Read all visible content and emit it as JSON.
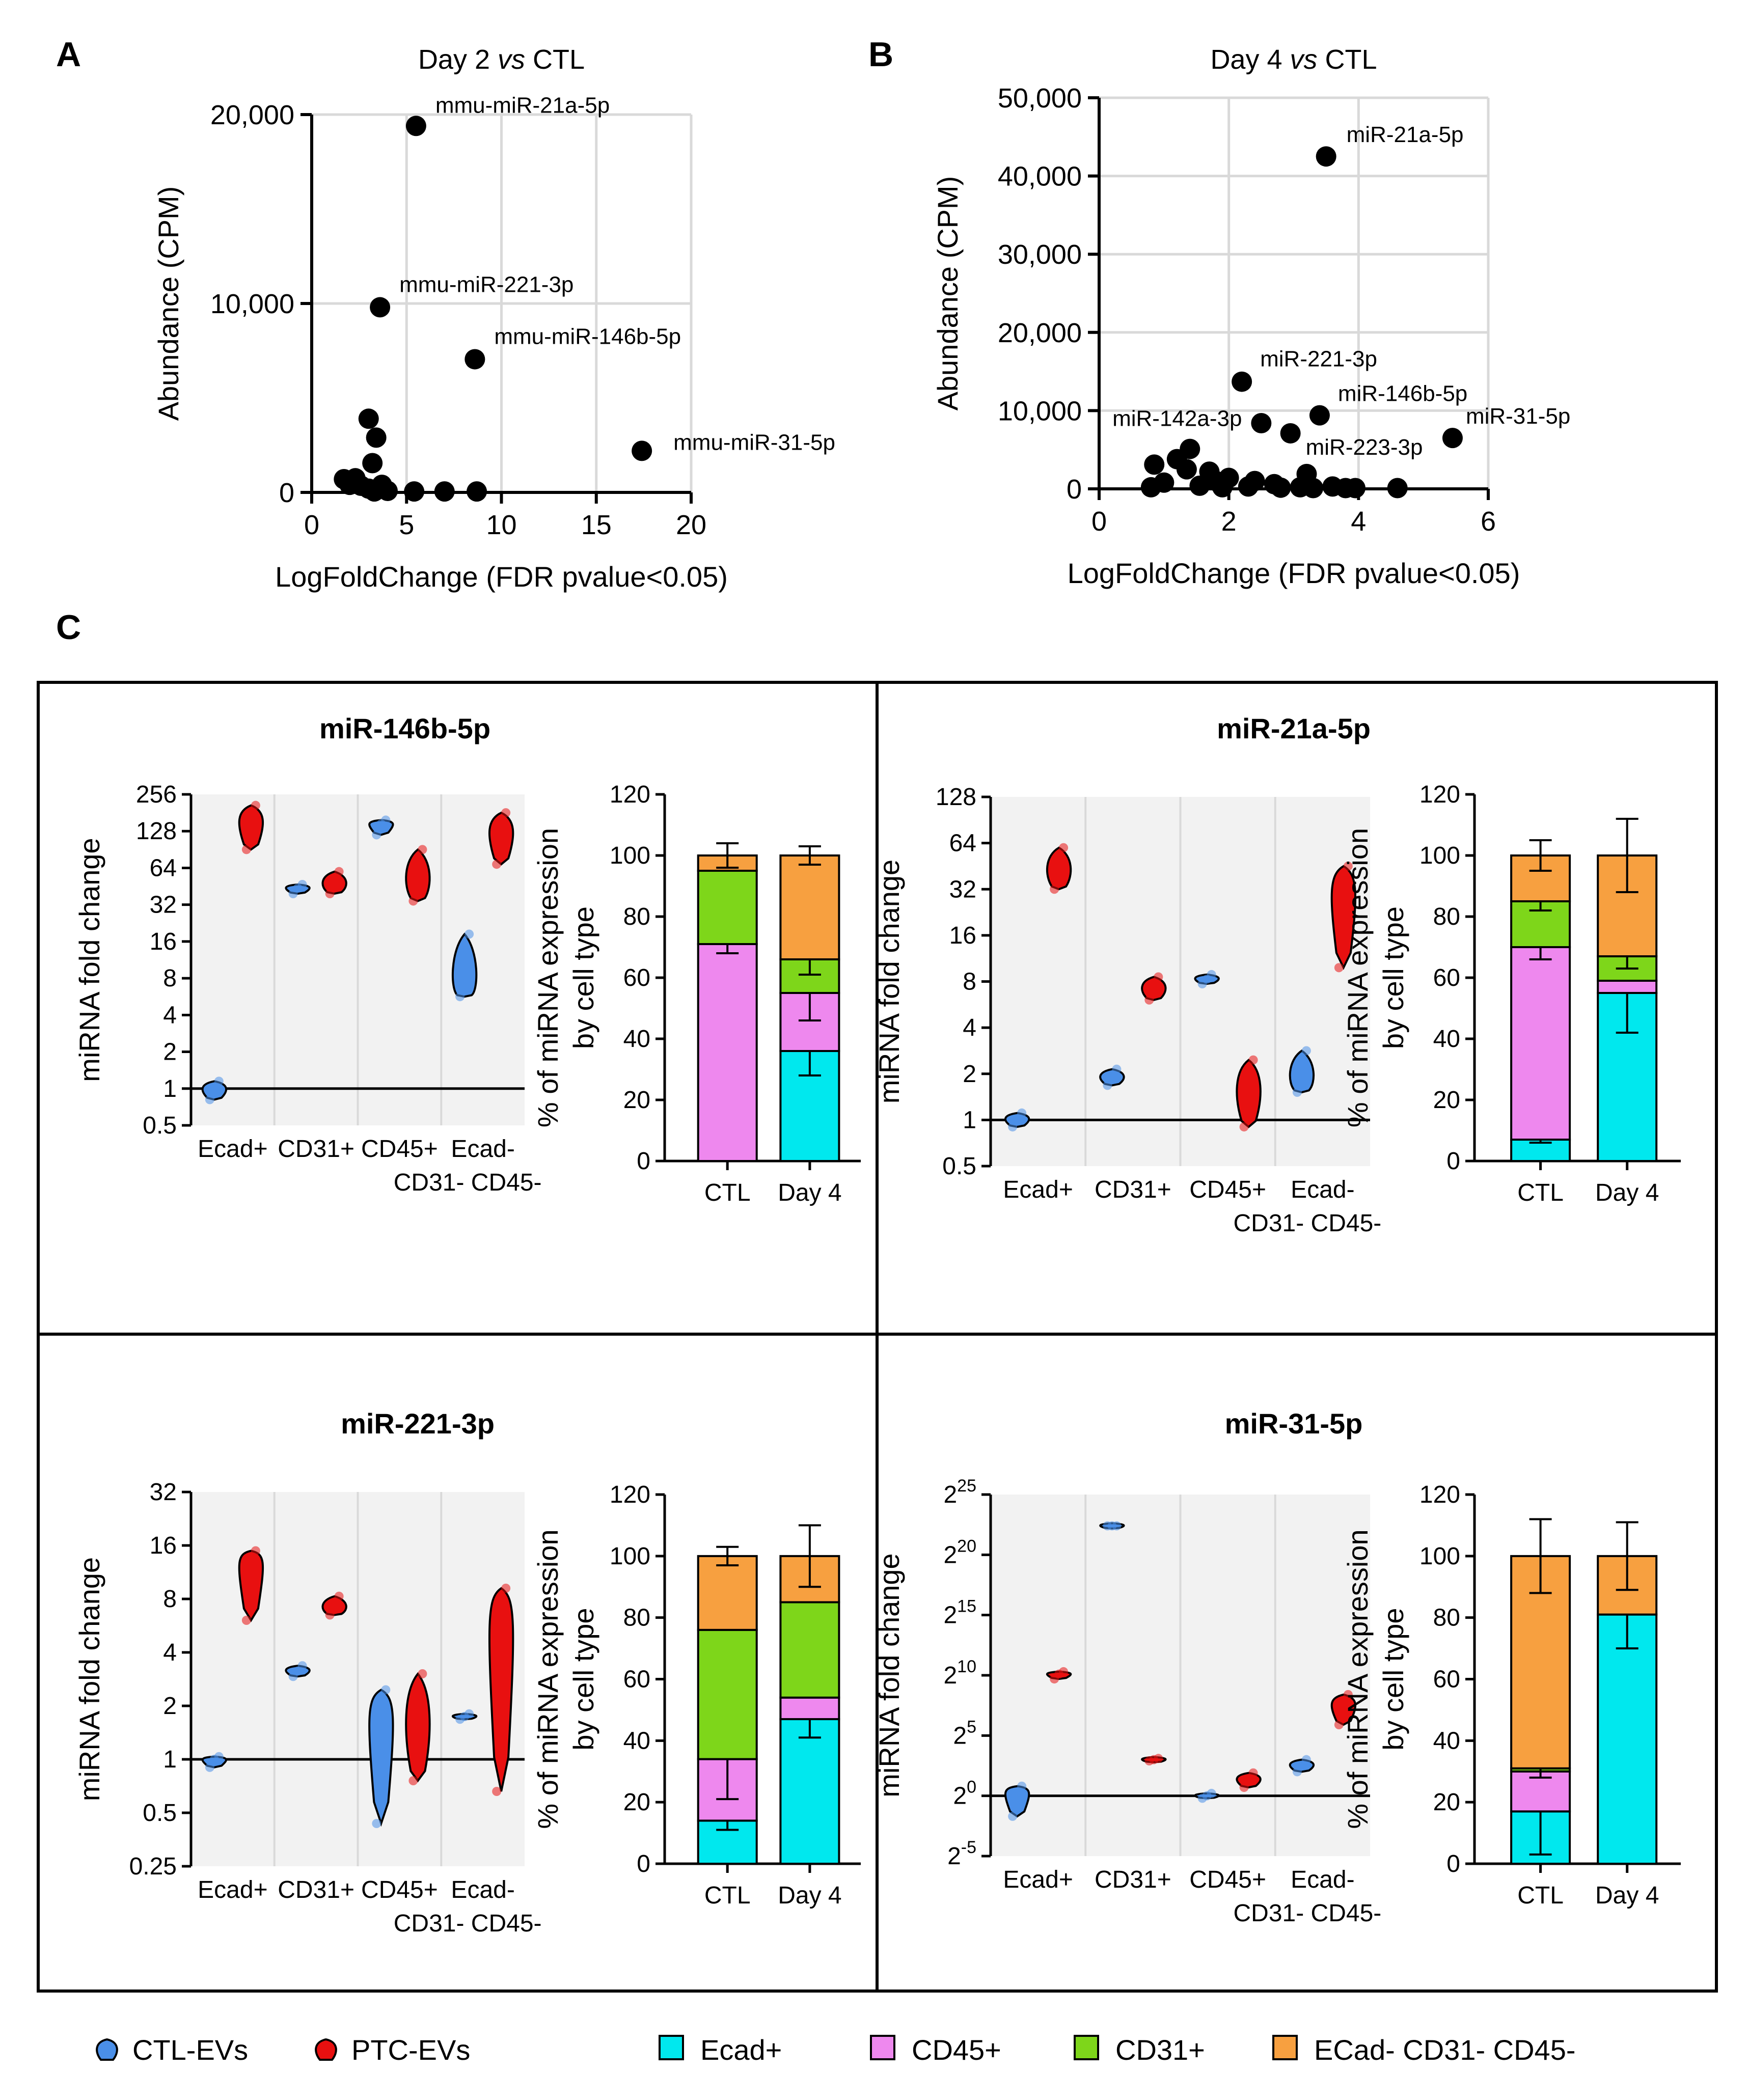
{
  "panel_letters": {
    "a": "A",
    "b": "B",
    "c": "C"
  },
  "colors": {
    "ctl_ev": "#4a8fe8",
    "ptc_ev": "#e81010",
    "ecad": "#00e8ee",
    "cd45": "#ee88ee",
    "cd31": "#7ed61a",
    "neg": "#f7a040",
    "grid": "#d9d9d9",
    "panel_bg": "#f2f2f2"
  },
  "legend": {
    "violin": [
      {
        "label": "CTL-EVs",
        "color_key": "ctl_ev"
      },
      {
        "label": "PTC-EVs",
        "color_key": "ptc_ev"
      }
    ],
    "stack": [
      {
        "label": "Ecad+",
        "color_key": "ecad"
      },
      {
        "label": "CD45+",
        "color_key": "cd45"
      },
      {
        "label": "CD31+",
        "color_key": "cd31"
      },
      {
        "label": "ECad- CD31- CD45-",
        "color_key": "neg"
      }
    ]
  },
  "chart_data": [
    {
      "id": "A",
      "type": "scatter",
      "title_pre": "Day 2 ",
      "title_em": "vs",
      "title_post": " CTL",
      "xlabel": "LogFoldChange (FDR pvalue<0.05)",
      "ylabel": "Abundance (CPM)",
      "xlim": [
        0,
        20
      ],
      "ylim": [
        0,
        20000
      ],
      "xticks": [
        "0",
        "5",
        "10",
        "15",
        "20"
      ],
      "yticks": [
        "0",
        "10,000",
        "20,000"
      ],
      "points": [
        {
          "x": 5.5,
          "y": 19400,
          "label": "mmu-miR-21a-5p"
        },
        {
          "x": 3.6,
          "y": 9800,
          "label": "mmu-miR-221-3p"
        },
        {
          "x": 8.6,
          "y": 7050,
          "label": "mmu-miR-146b-5p"
        },
        {
          "x": 17.4,
          "y": 2200,
          "label": "mmu-miR-31-5p"
        },
        {
          "x": 3.0,
          "y": 3900
        },
        {
          "x": 3.4,
          "y": 2900
        },
        {
          "x": 3.2,
          "y": 1550
        },
        {
          "x": 1.7,
          "y": 700
        },
        {
          "x": 2.3,
          "y": 750
        },
        {
          "x": 2.0,
          "y": 400
        },
        {
          "x": 2.6,
          "y": 350
        },
        {
          "x": 3.0,
          "y": 200
        },
        {
          "x": 3.7,
          "y": 400
        },
        {
          "x": 4.0,
          "y": 80
        },
        {
          "x": 5.4,
          "y": 50
        },
        {
          "x": 7.0,
          "y": 50
        },
        {
          "x": 8.7,
          "y": 50
        },
        {
          "x": 3.3,
          "y": 50
        }
      ]
    },
    {
      "id": "B",
      "type": "scatter",
      "title_pre": "Day 4 ",
      "title_em": "vs",
      "title_post": " CTL",
      "xlabel": "LogFoldChange (FDR pvalue<0.05)",
      "ylabel": "Abundance (CPM)",
      "xlim": [
        0,
        6
      ],
      "ylim": [
        0,
        50000
      ],
      "xticks": [
        "0",
        "2",
        "4",
        "6"
      ],
      "yticks": [
        "0",
        "10,000",
        "20,000",
        "30,000",
        "40,000",
        "50,000"
      ],
      "points": [
        {
          "x": 3.5,
          "y": 42500,
          "label": "miR-21a-5p"
        },
        {
          "x": 2.2,
          "y": 13700,
          "label": "miR-221-3p"
        },
        {
          "x": 3.4,
          "y": 9400,
          "label": "miR-146b-5p"
        },
        {
          "x": 5.45,
          "y": 6500,
          "label": "miR-31-5p"
        },
        {
          "x": 1.4,
          "y": 5100,
          "label": "miR-142a-3p"
        },
        {
          "x": 2.95,
          "y": 7100,
          "label": "miR-223-3p"
        },
        {
          "x": 2.5,
          "y": 8400
        },
        {
          "x": 0.85,
          "y": 3100
        },
        {
          "x": 1.2,
          "y": 3800
        },
        {
          "x": 1.35,
          "y": 2500
        },
        {
          "x": 1.7,
          "y": 2200
        },
        {
          "x": 2.0,
          "y": 1400
        },
        {
          "x": 2.4,
          "y": 1000
        },
        {
          "x": 2.7,
          "y": 600
        },
        {
          "x": 3.2,
          "y": 1900
        },
        {
          "x": 3.6,
          "y": 300
        },
        {
          "x": 0.8,
          "y": 200
        },
        {
          "x": 1.0,
          "y": 800
        },
        {
          "x": 1.55,
          "y": 400
        },
        {
          "x": 1.9,
          "y": 200
        },
        {
          "x": 2.3,
          "y": 300
        },
        {
          "x": 2.8,
          "y": 150
        },
        {
          "x": 3.1,
          "y": 200
        },
        {
          "x": 3.3,
          "y": 100
        },
        {
          "x": 3.8,
          "y": 100
        },
        {
          "x": 3.95,
          "y": 100
        },
        {
          "x": 4.6,
          "y": 100
        },
        {
          "x": 1.8,
          "y": 1000
        }
      ]
    },
    {
      "id": "C-146b",
      "type": "violin",
      "title": "miR-146b-5p",
      "ylabel": "miRNA fold change",
      "scale": "log2",
      "ylim_log2": [
        -1,
        8
      ],
      "yticks": [
        {
          "e": 8,
          "label": "256"
        },
        {
          "e": 7,
          "label": "128"
        },
        {
          "e": 6,
          "label": "64"
        },
        {
          "e": 5,
          "label": "32"
        },
        {
          "e": 4,
          "label": "16"
        },
        {
          "e": 3,
          "label": "8"
        },
        {
          "e": 2,
          "label": "4"
        },
        {
          "e": 1,
          "label": "2"
        },
        {
          "e": 0,
          "label": "1"
        },
        {
          "e": -1,
          "label": "0.5"
        }
      ],
      "categories": [
        "Ecad+",
        "CD31+",
        "CD45+",
        "Ecad-"
      ],
      "cat_second_line": "CD31- CD45-",
      "groups": [
        {
          "cat": 0,
          "sub": "ctl",
          "values_log2": [
            -0.3,
            -0.05,
            0.2
          ]
        },
        {
          "cat": 0,
          "sub": "ptc",
          "values_log2": [
            6.5,
            7.2,
            7.7
          ]
        },
        {
          "cat": 1,
          "sub": "ctl",
          "values_log2": [
            5.3,
            5.45,
            5.55
          ]
        },
        {
          "cat": 1,
          "sub": "ptc",
          "values_log2": [
            5.3,
            5.5,
            5.9
          ]
        },
        {
          "cat": 2,
          "sub": "ctl",
          "values_log2": [
            6.9,
            7.2,
            7.3
          ]
        },
        {
          "cat": 2,
          "sub": "ptc",
          "values_log2": [
            5.1,
            5.5,
            6.5
          ]
        },
        {
          "cat": 3,
          "sub": "ctl",
          "values_log2": [
            2.5,
            2.7,
            4.2
          ]
        },
        {
          "cat": 3,
          "sub": "ptc",
          "values_log2": [
            6.1,
            6.9,
            7.5
          ]
        }
      ]
    },
    {
      "id": "C-146b-stack",
      "type": "bar",
      "stacked": true,
      "ylabel_line1": "% of miRNA expression",
      "ylabel_line2": "by cell type",
      "ylim": [
        0,
        120
      ],
      "yticks": [
        "0",
        "20",
        "40",
        "60",
        "80",
        "100",
        "120"
      ],
      "categories": [
        "CTL",
        "Day 4"
      ],
      "series": [
        {
          "name": "Ecad+",
          "color_key": "ecad",
          "values": [
            0,
            36
          ],
          "err": [
            0,
            8
          ]
        },
        {
          "name": "CD45+",
          "color_key": "cd45",
          "values": [
            71,
            19
          ],
          "err": [
            3,
            9
          ]
        },
        {
          "name": "CD31+",
          "color_key": "cd31",
          "values": [
            24,
            11
          ],
          "err": [
            0,
            5
          ]
        },
        {
          "name": "ECad- CD31- CD45-",
          "color_key": "neg",
          "values": [
            5,
            34
          ],
          "err": [
            4,
            3
          ]
        }
      ]
    },
    {
      "id": "C-21a",
      "type": "violin",
      "title": "miR-21a-5p",
      "ylabel": "miRNA fold change",
      "scale": "log2",
      "ylim_log2": [
        -1,
        7
      ],
      "yticks": [
        {
          "e": 7,
          "label": "128"
        },
        {
          "e": 6,
          "label": "64"
        },
        {
          "e": 5,
          "label": "32"
        },
        {
          "e": 4,
          "label": "16"
        },
        {
          "e": 3,
          "label": "8"
        },
        {
          "e": 2,
          "label": "4"
        },
        {
          "e": 1,
          "label": "2"
        },
        {
          "e": 0,
          "label": "1"
        },
        {
          "e": -1,
          "label": "0.5"
        }
      ],
      "categories": [
        "Ecad+",
        "CD31+",
        "CD45+",
        "Ecad-"
      ],
      "cat_second_line": "CD31- CD45-",
      "groups": [
        {
          "cat": 0,
          "sub": "ctl",
          "values_log2": [
            -0.15,
            0.0,
            0.15
          ]
        },
        {
          "cat": 0,
          "sub": "ptc",
          "values_log2": [
            5.0,
            5.3,
            5.9
          ]
        },
        {
          "cat": 1,
          "sub": "ctl",
          "values_log2": [
            0.75,
            0.9,
            1.1
          ]
        },
        {
          "cat": 1,
          "sub": "ptc",
          "values_log2": [
            2.6,
            2.8,
            3.1
          ]
        },
        {
          "cat": 2,
          "sub": "ctl",
          "values_log2": [
            2.95,
            3.05,
            3.15
          ]
        },
        {
          "cat": 2,
          "sub": "ptc",
          "values_log2": [
            -0.15,
            0.5,
            1.3
          ]
        },
        {
          "cat": 3,
          "sub": "ctl",
          "values_log2": [
            0.6,
            0.8,
            1.5
          ]
        },
        {
          "cat": 3,
          "sub": "ptc",
          "values_log2": [
            3.3,
            4.9,
            5.5
          ]
        }
      ]
    },
    {
      "id": "C-21a-stack",
      "type": "bar",
      "stacked": true,
      "ylabel_line1": "% of miRNA expression",
      "ylabel_line2": "by cell type",
      "ylim": [
        0,
        120
      ],
      "yticks": [
        "0",
        "20",
        "40",
        "60",
        "80",
        "100",
        "120"
      ],
      "categories": [
        "CTL",
        "Day 4"
      ],
      "series": [
        {
          "name": "Ecad+",
          "color_key": "ecad",
          "values": [
            7,
            55
          ],
          "err": [
            1,
            13
          ]
        },
        {
          "name": "CD45+",
          "color_key": "cd45",
          "values": [
            63,
            4
          ],
          "err": [
            4,
            0
          ]
        },
        {
          "name": "CD31+",
          "color_key": "cd31",
          "values": [
            15,
            8
          ],
          "err": [
            3,
            4
          ]
        },
        {
          "name": "ECad- CD31- CD45-",
          "color_key": "neg",
          "values": [
            15,
            33
          ],
          "err": [
            5,
            12
          ]
        }
      ]
    },
    {
      "id": "C-221",
      "type": "violin",
      "title": "miR-221-3p",
      "ylabel": "miRNA fold change",
      "scale": "log2",
      "ylim_log2": [
        -2,
        5
      ],
      "yticks": [
        {
          "e": 5,
          "label": "32"
        },
        {
          "e": 4,
          "label": "16"
        },
        {
          "e": 3,
          "label": "8"
        },
        {
          "e": 2,
          "label": "4"
        },
        {
          "e": 1,
          "label": "2"
        },
        {
          "e": 0,
          "label": "1"
        },
        {
          "e": -1,
          "label": "0.5"
        },
        {
          "e": -2,
          "label": "0.25"
        }
      ],
      "categories": [
        "Ecad+",
        "CD31+",
        "CD45+",
        "Ecad-"
      ],
      "cat_second_line": "CD31- CD45-",
      "groups": [
        {
          "cat": 0,
          "sub": "ctl",
          "values_log2": [
            -0.15,
            0.0,
            0.05
          ]
        },
        {
          "cat": 0,
          "sub": "ptc",
          "values_log2": [
            2.6,
            3.7,
            3.9
          ]
        },
        {
          "cat": 1,
          "sub": "ctl",
          "values_log2": [
            1.55,
            1.65,
            1.75
          ]
        },
        {
          "cat": 1,
          "sub": "ptc",
          "values_log2": [
            2.7,
            2.8,
            3.05
          ]
        },
        {
          "cat": 2,
          "sub": "ctl",
          "values_log2": [
            -1.2,
            0.8,
            1.3
          ]
        },
        {
          "cat": 2,
          "sub": "ptc",
          "values_log2": [
            -0.4,
            0.5,
            1.6
          ]
        },
        {
          "cat": 3,
          "sub": "ctl",
          "values_log2": [
            0.75,
            0.8,
            0.85
          ]
        },
        {
          "cat": 3,
          "sub": "ptc",
          "values_log2": [
            -0.6,
            2.6,
            3.2
          ]
        }
      ]
    },
    {
      "id": "C-221-stack",
      "type": "bar",
      "stacked": true,
      "ylabel_line1": "% of miRNA expression",
      "ylabel_line2": "by cell type",
      "ylim": [
        0,
        120
      ],
      "yticks": [
        "0",
        "20",
        "40",
        "60",
        "80",
        "100",
        "120"
      ],
      "categories": [
        "CTL",
        "Day 4"
      ],
      "series": [
        {
          "name": "Ecad+",
          "color_key": "ecad",
          "values": [
            14,
            47
          ],
          "err": [
            3,
            6
          ]
        },
        {
          "name": "CD45+",
          "color_key": "cd45",
          "values": [
            20,
            7
          ],
          "err": [
            13,
            0
          ]
        },
        {
          "name": "CD31+",
          "color_key": "cd31",
          "values": [
            42,
            31
          ],
          "err": [
            0,
            0
          ]
        },
        {
          "name": "ECad- CD31- CD45-",
          "color_key": "neg",
          "values": [
            24,
            15
          ],
          "err": [
            3,
            10
          ]
        }
      ]
    },
    {
      "id": "C-31",
      "type": "violin",
      "title": "miR-31-5p",
      "ylabel": "miRNA fold change",
      "scale": "log2",
      "ylim_log2": [
        -5,
        25
      ],
      "yticks": [
        {
          "e": 25,
          "label": "2^25"
        },
        {
          "e": 20,
          "label": "2^20"
        },
        {
          "e": 15,
          "label": "2^15"
        },
        {
          "e": 10,
          "label": "2^10"
        },
        {
          "e": 5,
          "label": "2^5"
        },
        {
          "e": 0,
          "label": "2^0"
        },
        {
          "e": -5,
          "label": "2^-5"
        }
      ],
      "categories": [
        "Ecad+",
        "CD31+",
        "CD45+",
        "Ecad-"
      ],
      "cat_second_line": "CD31- CD45-",
      "groups": [
        {
          "cat": 0,
          "sub": "ctl",
          "values_log2": [
            -1.7,
            0.3,
            0.8
          ]
        },
        {
          "cat": 0,
          "sub": "ptc",
          "values_log2": [
            9.7,
            10.1,
            10.3
          ]
        },
        {
          "cat": 1,
          "sub": "ctl",
          "values_log2": [
            22.4,
            22.4,
            22.4
          ]
        },
        {
          "cat": 1,
          "sub": "ptc",
          "values_log2": [
            2.9,
            3.0,
            3.1
          ]
        },
        {
          "cat": 2,
          "sub": "ctl",
          "values_log2": [
            -0.2,
            0.0,
            0.2
          ]
        },
        {
          "cat": 2,
          "sub": "ptc",
          "values_log2": [
            0.7,
            1.3,
            1.9
          ]
        },
        {
          "cat": 3,
          "sub": "ctl",
          "values_log2": [
            2.0,
            2.5,
            3.0
          ]
        },
        {
          "cat": 3,
          "sub": "ptc",
          "values_log2": [
            5.9,
            7.5,
            8.4
          ]
        }
      ]
    },
    {
      "id": "C-31-stack",
      "type": "bar",
      "stacked": true,
      "ylabel_line1": "% of miRNA expression",
      "ylabel_line2": "by cell type",
      "ylim": [
        0,
        120
      ],
      "yticks": [
        "0",
        "20",
        "40",
        "60",
        "80",
        "100",
        "120"
      ],
      "categories": [
        "CTL",
        "Day 4"
      ],
      "series": [
        {
          "name": "Ecad+",
          "color_key": "ecad",
          "values": [
            17,
            81
          ],
          "err": [
            14,
            11
          ]
        },
        {
          "name": "CD45+",
          "color_key": "cd45",
          "values": [
            13,
            0
          ],
          "err": [
            0,
            0
          ]
        },
        {
          "name": "CD31+",
          "color_key": "cd31",
          "values": [
            1,
            0
          ],
          "err": [
            3,
            0
          ]
        },
        {
          "name": "ECad- CD31- CD45-",
          "color_key": "neg",
          "values": [
            69,
            19
          ],
          "err": [
            12,
            11
          ]
        }
      ]
    }
  ]
}
